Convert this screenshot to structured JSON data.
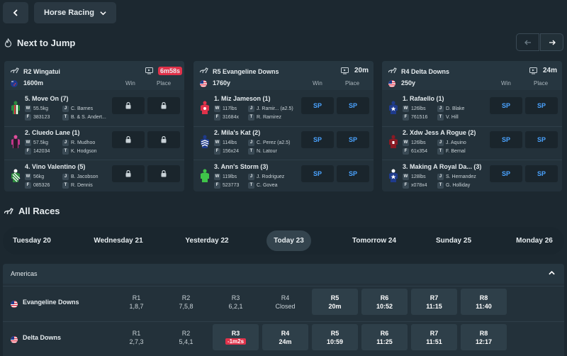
{
  "topbar": {
    "sport": "Horse Racing"
  },
  "next_to_jump": {
    "title": "Next to Jump",
    "win_label": "Win",
    "place_label": "Place",
    "cards": [
      {
        "race": "R2 Wingatui",
        "distance": "1600m",
        "countdown": "6m58s",
        "runners": [
          {
            "name": "5. Move On",
            "barrier": "(7)",
            "weight": "55.5kg",
            "jockey": "C. Barnes",
            "form": "383123",
            "trainer": "B. & S. Andert...",
            "win": "",
            "place": ""
          },
          {
            "name": "2. Cluedo Lane",
            "barrier": "(1)",
            "weight": "57.5kg",
            "jockey": "R. Mudhoo",
            "form": "142034",
            "trainer": "K. Hodgson",
            "win": "",
            "place": ""
          },
          {
            "name": "4. Vino Valentino",
            "barrier": "(5)",
            "weight": "56kg",
            "jockey": "B. Jacobson",
            "form": "085326",
            "trainer": "R. Dennis",
            "win": "",
            "place": ""
          }
        ]
      },
      {
        "race": "R5 Evangeline Downs",
        "distance": "1760y",
        "countdown": "20m",
        "runners": [
          {
            "name": "1. Miz Jameson",
            "barrier": "(1)",
            "weight": "117lbs",
            "jockey": "J. Ramir... (a2.5)",
            "form": "31684x",
            "trainer": "R. Ramirez",
            "win": "SP",
            "place": "SP"
          },
          {
            "name": "2. Mila's Kat",
            "barrier": "(2)",
            "weight": "114lbs",
            "jockey": "C. Perez (a2.5)",
            "form": "156x24",
            "trainer": "N. Latour",
            "win": "SP",
            "place": "SP"
          },
          {
            "name": "3. Ann's Storm",
            "barrier": "(3)",
            "weight": "119lbs",
            "jockey": "J. Rodriguez",
            "form": "523773",
            "trainer": "C. Govea",
            "win": "SP",
            "place": "SP"
          }
        ]
      },
      {
        "race": "R4 Delta Downs",
        "distance": "250y",
        "countdown": "24m",
        "runners": [
          {
            "name": "1. Rafaello",
            "barrier": "(1)",
            "weight": "126lbs",
            "jockey": "D. Blake",
            "form": "761516",
            "trainer": "V. Hill",
            "win": "SP",
            "place": "SP"
          },
          {
            "name": "2. Xdw Jess A Rogue",
            "barrier": "(2)",
            "weight": "126lbs",
            "jockey": "J. Aquino",
            "form": "61x354",
            "trainer": "F. Bernal",
            "win": "SP",
            "place": "SP"
          },
          {
            "name": "3. Making A Royal Da...",
            "barrier": "(3)",
            "weight": "128lbs",
            "jockey": "S. Hernandez",
            "form": "x078x4",
            "trainer": "G. Holliday",
            "win": "SP",
            "place": "SP"
          }
        ]
      }
    ]
  },
  "all_races": {
    "title": "All Races",
    "days": [
      "Tuesday 20",
      "Wednesday 21",
      "Yesterday 22",
      "Today 23",
      "Tomorrow 24",
      "Sunday 25",
      "Monday 26"
    ],
    "region": "Americas",
    "meetings": [
      {
        "name": "Evangeline Downs",
        "races": [
          {
            "label": "R1",
            "value": "1,8,7"
          },
          {
            "label": "R2",
            "value": "7,5,8"
          },
          {
            "label": "R3",
            "value": "6,2,1"
          },
          {
            "label": "R4",
            "value": "Closed"
          },
          {
            "label": "R5",
            "value": "20m"
          },
          {
            "label": "R6",
            "value": "10:52"
          },
          {
            "label": "R7",
            "value": "11:15"
          },
          {
            "label": "R8",
            "value": "11:40"
          }
        ]
      },
      {
        "name": "Delta Downs",
        "races": [
          {
            "label": "R1",
            "value": "2,7,3"
          },
          {
            "label": "R2",
            "value": "5,4,1"
          },
          {
            "label": "R3",
            "value": "-1m2s"
          },
          {
            "label": "R4",
            "value": "24m"
          },
          {
            "label": "R5",
            "value": "10:59"
          },
          {
            "label": "R6",
            "value": "11:25"
          },
          {
            "label": "R7",
            "value": "11:51"
          },
          {
            "label": "R8",
            "value": "12:17"
          }
        ]
      }
    ]
  }
}
